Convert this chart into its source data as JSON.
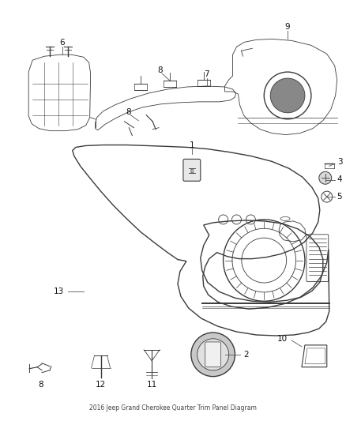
{
  "title": "2016 Jeep Grand Cherokee Quarter Trim Panel Diagram",
  "background_color": "#ffffff",
  "line_color": "#4a4a4a",
  "label_color": "#000000",
  "figsize": [
    4.38,
    5.33
  ],
  "dpi": 100,
  "label_fontsize": 7.5
}
